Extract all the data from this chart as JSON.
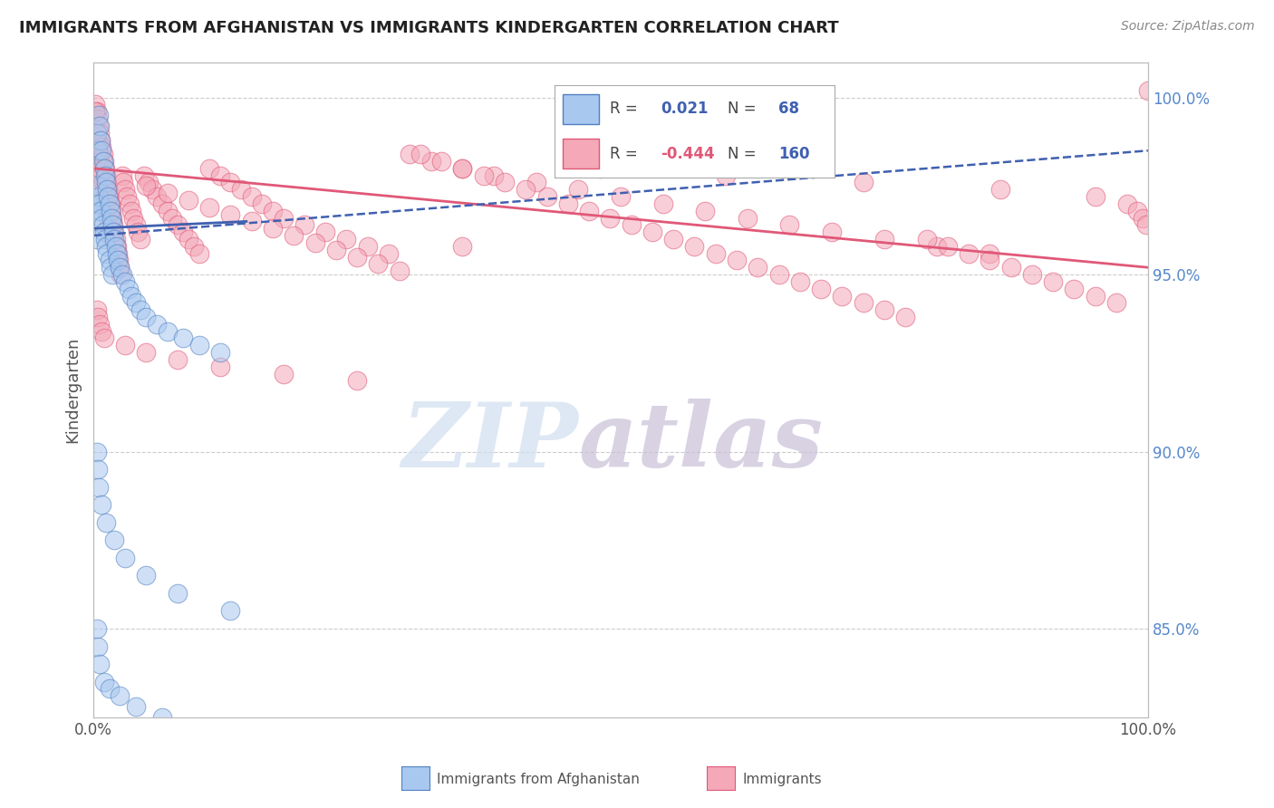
{
  "title": "IMMIGRANTS FROM AFGHANISTAN VS IMMIGRANTS KINDERGARTEN CORRELATION CHART",
  "source_text": "Source: ZipAtlas.com",
  "ylabel": "Kindergarten",
  "y_axis_right_labels": [
    "85.0%",
    "90.0%",
    "95.0%",
    "100.0%"
  ],
  "y_axis_right_values": [
    0.85,
    0.9,
    0.95,
    1.0
  ],
  "blue_color": "#A8C8F0",
  "pink_color": "#F4A8B8",
  "blue_edge_color": "#5080C0",
  "pink_edge_color": "#E05878",
  "blue_line_color": "#4060B0",
  "pink_line_color": "#E05878",
  "background_color": "#FFFFFF",
  "grid_color": "#CCCCCC",
  "title_color": "#222222",
  "source_color": "#888888",
  "legend_blue_r_color": "#4060B0",
  "legend_pink_r_color": "#E05878",
  "legend_n_color": "#4060B0",
  "blue_scatter_x": [
    0.002,
    0.003,
    0.003,
    0.003,
    0.004,
    0.004,
    0.005,
    0.005,
    0.006,
    0.006,
    0.007,
    0.007,
    0.008,
    0.008,
    0.009,
    0.009,
    0.01,
    0.01,
    0.011,
    0.011,
    0.012,
    0.012,
    0.013,
    0.013,
    0.014,
    0.015,
    0.015,
    0.016,
    0.016,
    0.017,
    0.018,
    0.018,
    0.019,
    0.02,
    0.021,
    0.022,
    0.023,
    0.025,
    0.027,
    0.03,
    0.033,
    0.036,
    0.04,
    0.045,
    0.05,
    0.06,
    0.07,
    0.085,
    0.1,
    0.12,
    0.003,
    0.004,
    0.005,
    0.008,
    0.012,
    0.02,
    0.03,
    0.05,
    0.08,
    0.13,
    0.003,
    0.004,
    0.006,
    0.01,
    0.015,
    0.025,
    0.04,
    0.065
  ],
  "blue_scatter_y": [
    0.97,
    0.99,
    0.975,
    0.96,
    0.985,
    0.968,
    0.995,
    0.972,
    0.992,
    0.97,
    0.988,
    0.968,
    0.985,
    0.966,
    0.982,
    0.964,
    0.98,
    0.962,
    0.978,
    0.96,
    0.976,
    0.958,
    0.974,
    0.956,
    0.972,
    0.97,
    0.954,
    0.968,
    0.952,
    0.966,
    0.964,
    0.95,
    0.962,
    0.96,
    0.958,
    0.956,
    0.954,
    0.952,
    0.95,
    0.948,
    0.946,
    0.944,
    0.942,
    0.94,
    0.938,
    0.936,
    0.934,
    0.932,
    0.93,
    0.928,
    0.9,
    0.895,
    0.89,
    0.885,
    0.88,
    0.875,
    0.87,
    0.865,
    0.86,
    0.855,
    0.85,
    0.845,
    0.84,
    0.835,
    0.833,
    0.831,
    0.828,
    0.825
  ],
  "pink_scatter_x": [
    0.002,
    0.003,
    0.003,
    0.004,
    0.004,
    0.005,
    0.005,
    0.006,
    0.006,
    0.007,
    0.007,
    0.008,
    0.008,
    0.009,
    0.009,
    0.01,
    0.01,
    0.011,
    0.011,
    0.012,
    0.012,
    0.013,
    0.013,
    0.014,
    0.014,
    0.015,
    0.015,
    0.016,
    0.016,
    0.017,
    0.018,
    0.018,
    0.019,
    0.02,
    0.021,
    0.022,
    0.023,
    0.024,
    0.025,
    0.026,
    0.027,
    0.028,
    0.03,
    0.032,
    0.034,
    0.036,
    0.038,
    0.04,
    0.042,
    0.045,
    0.048,
    0.052,
    0.056,
    0.06,
    0.065,
    0.07,
    0.075,
    0.08,
    0.085,
    0.09,
    0.095,
    0.1,
    0.11,
    0.12,
    0.13,
    0.14,
    0.15,
    0.16,
    0.17,
    0.18,
    0.2,
    0.22,
    0.24,
    0.26,
    0.28,
    0.3,
    0.32,
    0.35,
    0.38,
    0.42,
    0.46,
    0.5,
    0.54,
    0.58,
    0.62,
    0.66,
    0.7,
    0.75,
    0.8,
    0.85,
    0.05,
    0.07,
    0.09,
    0.11,
    0.13,
    0.15,
    0.17,
    0.19,
    0.21,
    0.23,
    0.25,
    0.27,
    0.29,
    0.31,
    0.33,
    0.35,
    0.37,
    0.39,
    0.41,
    0.43,
    0.45,
    0.47,
    0.49,
    0.51,
    0.53,
    0.55,
    0.57,
    0.59,
    0.61,
    0.63,
    0.65,
    0.67,
    0.69,
    0.71,
    0.73,
    0.75,
    0.77,
    0.79,
    0.81,
    0.83,
    0.85,
    0.87,
    0.89,
    0.91,
    0.93,
    0.95,
    0.97,
    0.003,
    0.004,
    0.006,
    0.008,
    0.01,
    0.03,
    0.05,
    0.08,
    0.12,
    0.18,
    0.25,
    0.35,
    0.48,
    0.6,
    0.73,
    0.86,
    0.95,
    0.98,
    0.99,
    0.995,
    0.998,
    1.0,
    0.002
  ],
  "pink_scatter_y": [
    0.998,
    0.996,
    0.988,
    0.994,
    0.986,
    0.992,
    0.984,
    0.99,
    0.982,
    0.988,
    0.98,
    0.986,
    0.978,
    0.984,
    0.976,
    0.982,
    0.974,
    0.98,
    0.972,
    0.978,
    0.97,
    0.976,
    0.968,
    0.974,
    0.966,
    0.972,
    0.964,
    0.97,
    0.962,
    0.968,
    0.966,
    0.96,
    0.964,
    0.962,
    0.96,
    0.958,
    0.956,
    0.954,
    0.952,
    0.95,
    0.978,
    0.976,
    0.974,
    0.972,
    0.97,
    0.968,
    0.966,
    0.964,
    0.962,
    0.96,
    0.978,
    0.976,
    0.974,
    0.972,
    0.97,
    0.968,
    0.966,
    0.964,
    0.962,
    0.96,
    0.958,
    0.956,
    0.98,
    0.978,
    0.976,
    0.974,
    0.972,
    0.97,
    0.968,
    0.966,
    0.964,
    0.962,
    0.96,
    0.958,
    0.956,
    0.984,
    0.982,
    0.98,
    0.978,
    0.976,
    0.974,
    0.972,
    0.97,
    0.968,
    0.966,
    0.964,
    0.962,
    0.96,
    0.958,
    0.956,
    0.975,
    0.973,
    0.971,
    0.969,
    0.967,
    0.965,
    0.963,
    0.961,
    0.959,
    0.957,
    0.955,
    0.953,
    0.951,
    0.984,
    0.982,
    0.98,
    0.978,
    0.976,
    0.974,
    0.972,
    0.97,
    0.968,
    0.966,
    0.964,
    0.962,
    0.96,
    0.958,
    0.956,
    0.954,
    0.952,
    0.95,
    0.948,
    0.946,
    0.944,
    0.942,
    0.94,
    0.938,
    0.96,
    0.958,
    0.956,
    0.954,
    0.952,
    0.95,
    0.948,
    0.946,
    0.944,
    0.942,
    0.94,
    0.938,
    0.936,
    0.934,
    0.932,
    0.93,
    0.928,
    0.926,
    0.924,
    0.922,
    0.92,
    0.958,
    0.98,
    0.978,
    0.976,
    0.974,
    0.972,
    0.97,
    0.968,
    0.966,
    0.964,
    1.002,
    0.996
  ],
  "blue_trend_x": [
    0.0,
    0.145
  ],
  "blue_trend_y": [
    0.963,
    0.965
  ],
  "blue_dash_trend_x": [
    0.0,
    1.0
  ],
  "blue_dash_trend_y": [
    0.961,
    0.985
  ],
  "pink_trend_x": [
    0.0,
    1.0
  ],
  "pink_trend_y": [
    0.98,
    0.952
  ],
  "xlim": [
    0.0,
    1.0
  ],
  "ylim": [
    0.825,
    1.01
  ]
}
